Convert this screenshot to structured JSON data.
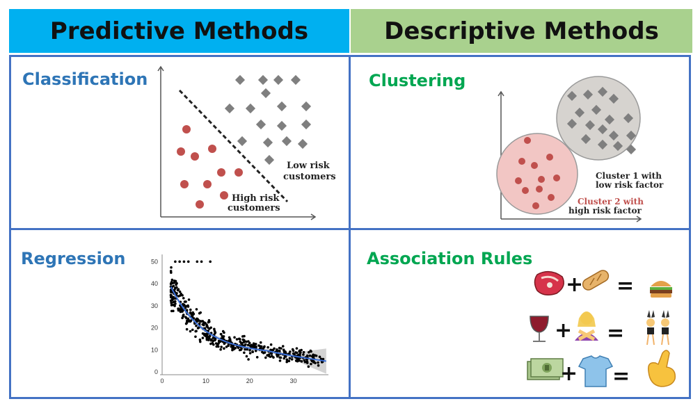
{
  "headers": {
    "left": "Predictive Methods",
    "right": "Descriptive Methods"
  },
  "panels": {
    "classification": {
      "label": "Classification",
      "low_label": [
        "Low risk",
        "customers"
      ],
      "high_label": [
        "High risk",
        "customers"
      ]
    },
    "clustering": {
      "label": "Clustering",
      "cluster1": [
        "Cluster 1 with",
        "low risk factor"
      ],
      "cluster2": [
        "Cluster 2 with",
        "high risk factor"
      ]
    },
    "regression": {
      "label": "Regression"
    },
    "association": {
      "label": "Association Rules",
      "rules": [
        {
          "a": "steak-icon",
          "b": "bread-icon",
          "result": "burger-icon"
        },
        {
          "a": "wine-glass-icon",
          "b": "woman-crossing-arms-icon",
          "result": "dancers-icon"
        },
        {
          "a": "money-bills-icon",
          "b": "tshirt-icon",
          "result": "call-me-hand-icon"
        }
      ]
    }
  },
  "chart_data": {
    "type": "scatter",
    "xlim": [
      0,
      38
    ],
    "ylim": [
      0,
      52
    ],
    "xticks": [
      0,
      10,
      20,
      30
    ],
    "yticks": [
      0,
      10,
      20,
      30,
      40,
      50
    ],
    "fit_line_color": "#3a6fd8",
    "point_color": "#000000"
  },
  "colors": {
    "predictive_header": "#00b0f0",
    "descriptive_header": "#a9d18e",
    "border": "#4472c4",
    "high_risk_point": "#c0504d",
    "low_risk_point": "#7f7f7f"
  }
}
